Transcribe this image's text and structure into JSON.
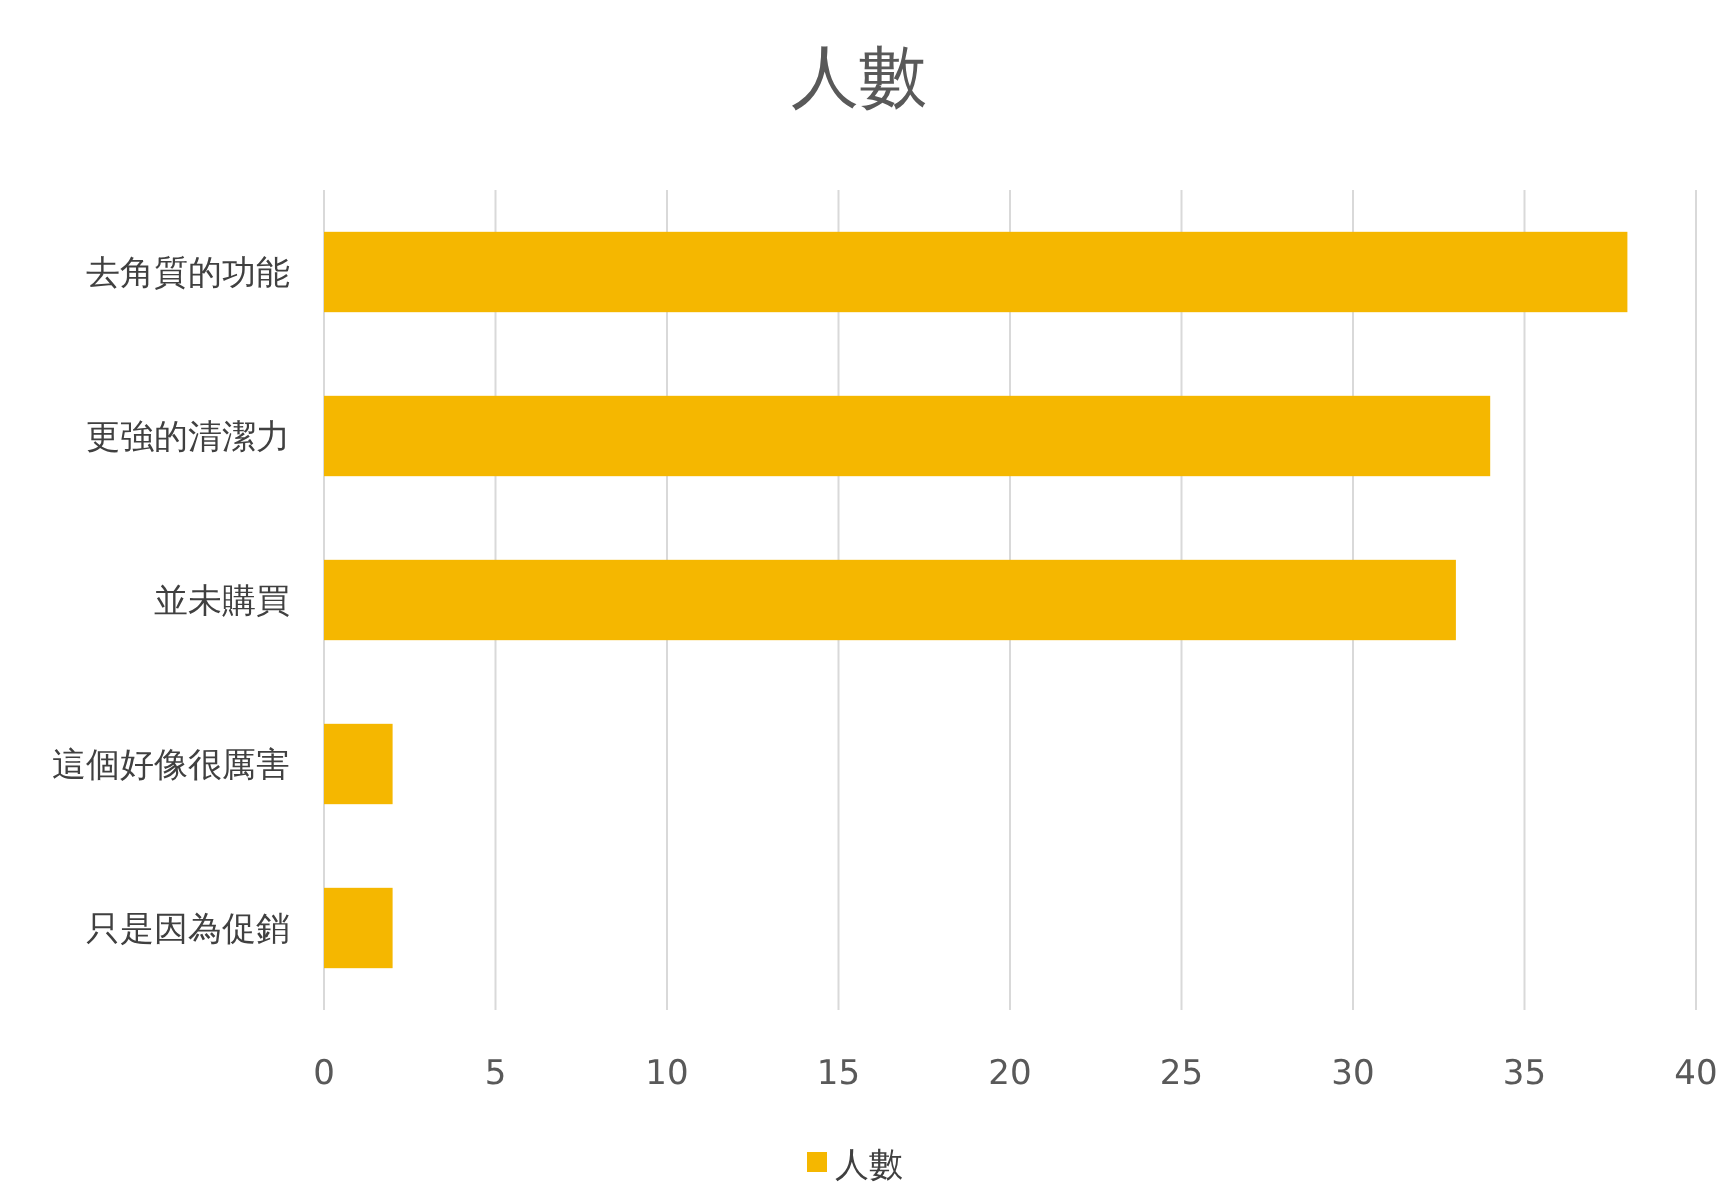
{
  "chart_data": {
    "type": "bar",
    "orientation": "horizontal",
    "title": "人數",
    "categories": [
      "去角質的功能",
      "更強的清潔力",
      "並未購買",
      "這個好像很厲害",
      "只是因為促銷"
    ],
    "series": [
      {
        "name": "人數",
        "color": "#f5b700",
        "values": [
          38,
          34,
          33,
          2,
          2
        ]
      }
    ],
    "xlim": [
      0,
      40
    ],
    "xticks": [
      0,
      5,
      10,
      15,
      20,
      25,
      30,
      35,
      40
    ],
    "grid": "x",
    "legend": "bottom"
  }
}
